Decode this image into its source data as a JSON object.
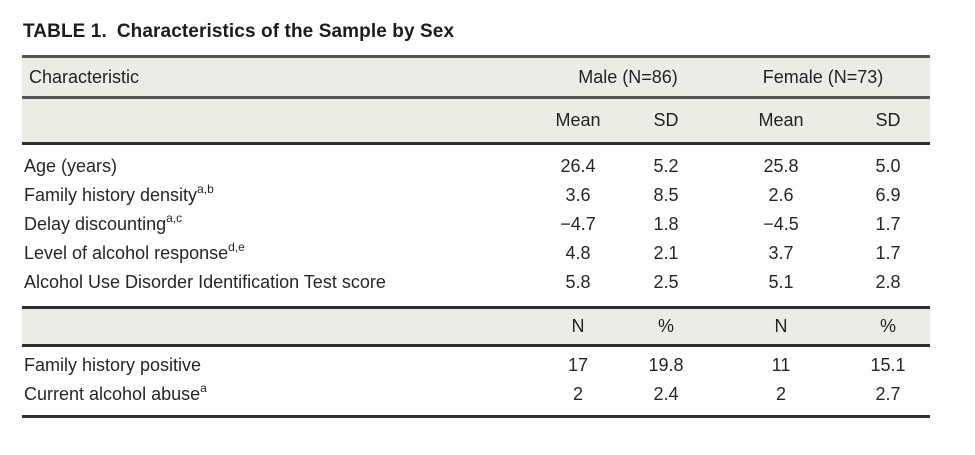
{
  "title": {
    "label": "TABLE 1.",
    "caption": "Characteristics of the Sample by Sex"
  },
  "table": {
    "characteristic_header": "Characteristic",
    "group_headers": [
      "Male (N=86)",
      "Female (N=73)"
    ],
    "stat_headers_mean": [
      "Mean",
      "SD",
      "Mean",
      "SD"
    ],
    "stat_headers_count": [
      "N",
      "%",
      "N",
      "%"
    ],
    "mean_rows": [
      {
        "label": "Age (years)",
        "sup": "",
        "values": [
          "26.4",
          "5.2",
          "25.8",
          "5.0"
        ]
      },
      {
        "label": "Family history density",
        "sup": "a,b",
        "values": [
          "3.6",
          "8.5",
          "2.6",
          "6.9"
        ]
      },
      {
        "label": "Delay discounting",
        "sup": "a,c",
        "values": [
          "−4.7",
          "1.8",
          "−4.5",
          "1.7"
        ]
      },
      {
        "label": "Level of alcohol response",
        "sup": "d,e",
        "values": [
          "4.8",
          "2.1",
          "3.7",
          "1.7"
        ]
      },
      {
        "label": "Alcohol Use Disorder Identification Test score",
        "sup": "",
        "values": [
          "5.8",
          "2.5",
          "5.1",
          "2.8"
        ]
      }
    ],
    "count_rows": [
      {
        "label": "Family history positive",
        "sup": "",
        "values": [
          "17",
          "19.8",
          "11",
          "15.1"
        ]
      },
      {
        "label": "Current alcohol abuse",
        "sup": "a",
        "values": [
          "2",
          "2.4",
          "2",
          "2.7"
        ]
      }
    ]
  },
  "colors": {
    "header_band": "#ECECE7",
    "rule_gray": "#55565A",
    "rule_dark": "#2F2F33",
    "text": "#232323",
    "background": "#FFFFFF"
  }
}
